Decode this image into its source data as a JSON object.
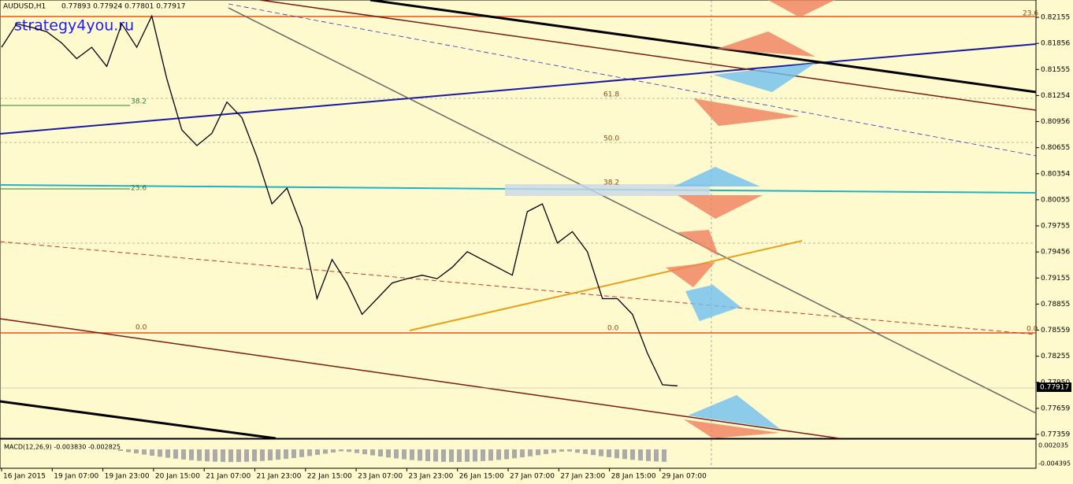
{
  "header": {
    "symbol": "AUDUSD,H1",
    "ohlc": "0.77893 0.77924 0.77801 0.77917"
  },
  "watermark": "strategy4you.ru",
  "price_axis": {
    "labels": [
      "0.82155",
      "0.81856",
      "0.81555",
      "0.81254",
      "0.80956",
      "0.80655",
      "0.80354",
      "0.80055",
      "0.79755",
      "0.79456",
      "0.79155",
      "0.78855",
      "0.78559",
      "0.78255",
      "0.77950",
      "0.77659",
      "0.77359"
    ],
    "current": "0.77917",
    "ylim": [
      0.77359,
      0.82155
    ]
  },
  "time_axis": {
    "labels": [
      "16 Jan 2015",
      "19 Jan 07:00",
      "19 Jan 23:00",
      "20 Jan 15:00",
      "21 Jan 07:00",
      "21 Jan 23:00",
      "22 Jan 15:00",
      "23 Jan 07:00",
      "23 Jan 23:00",
      "26 Jan 15:00",
      "27 Jan 07:00",
      "27 Jan 23:00",
      "28 Jan 15:00",
      "29 Jan 07:00"
    ]
  },
  "fib_labels": [
    "23.6",
    "38.2",
    "23.6",
    "0.0",
    "61.8",
    "50.0",
    "38.2",
    "0.0",
    "0.0"
  ],
  "macd": {
    "label": "MACD(12,26,9) -0.003830 -0.002825",
    "axis": [
      "0.002035",
      "-0.004395"
    ]
  },
  "closes": [
    0.8181,
    0.8208,
    0.8204,
    0.8199,
    0.8186,
    0.8168,
    0.8181,
    0.8159,
    0.8208,
    0.8181,
    0.8217,
    0.8145,
    0.8086,
    0.8068,
    0.8082,
    0.8118,
    0.81,
    0.8055,
    0.8001,
    0.8019,
    0.7974,
    0.7892,
    0.7937,
    0.791,
    0.7874,
    0.7892,
    0.791,
    0.7915,
    0.7919,
    0.7915,
    0.7928,
    0.7946,
    0.7937,
    0.7928,
    0.7919,
    0.7992,
    0.8001,
    0.7956,
    0.7969,
    0.7946,
    0.7892,
    0.7892,
    0.7874,
    0.7829,
    0.7793,
    0.77917
  ]
}
